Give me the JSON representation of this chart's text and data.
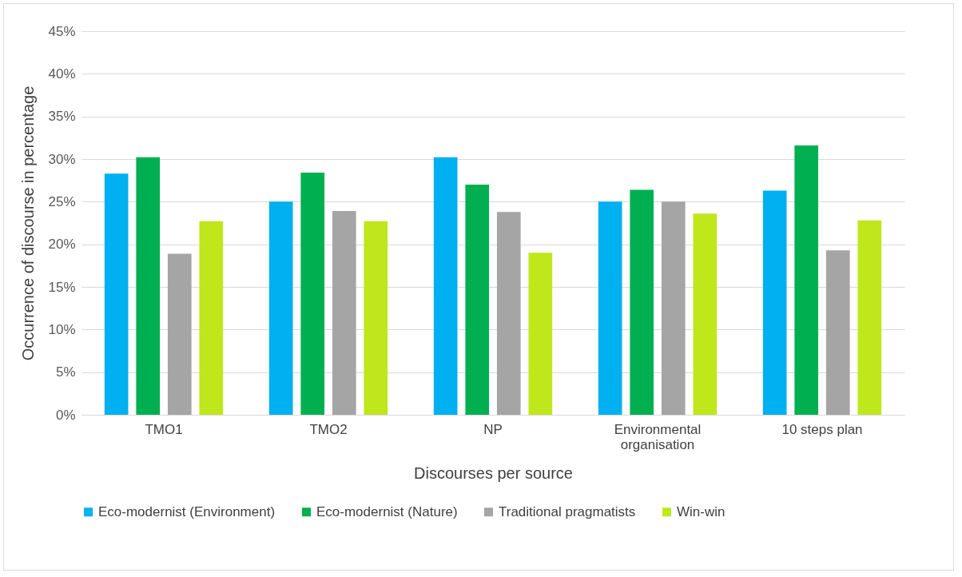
{
  "chart_data": {
    "type": "bar",
    "xlabel": "Discourses per source",
    "ylabel": "Occurrence of discourse in percentage",
    "categories": [
      "TMO1",
      "TMO2",
      "NP",
      "Environmental organisation",
      "10 steps plan"
    ],
    "series": [
      {
        "name": "Eco-modernist (Environment)",
        "color": "#00b0f0",
        "values": [
          28.3,
          25.0,
          30.2,
          25.0,
          26.3
        ]
      },
      {
        "name": "Eco-modernist (Nature)",
        "color": "#00b050",
        "values": [
          30.2,
          28.4,
          27.0,
          26.4,
          31.6
        ]
      },
      {
        "name": "Traditional pragmatists",
        "color": "#a5a5a5",
        "values": [
          18.9,
          23.9,
          23.8,
          25.0,
          19.3
        ]
      },
      {
        "name": "Win-win",
        "color": "#bfe71b",
        "values": [
          22.7,
          22.7,
          19.0,
          23.6,
          22.8
        ]
      }
    ],
    "ylim": [
      0,
      45
    ],
    "yticks": [
      {
        "value": 0,
        "label": "0%"
      },
      {
        "value": 5,
        "label": "5%"
      },
      {
        "value": 10,
        "label": "10%"
      },
      {
        "value": 15,
        "label": "15%"
      },
      {
        "value": 20,
        "label": "20%"
      },
      {
        "value": 25,
        "label": "25%"
      },
      {
        "value": 30,
        "label": "30%"
      },
      {
        "value": 35,
        "label": "35%"
      },
      {
        "value": 40,
        "label": "40%"
      },
      {
        "value": 45,
        "label": "45%"
      }
    ],
    "grid": "y",
    "legend": "bottom"
  }
}
